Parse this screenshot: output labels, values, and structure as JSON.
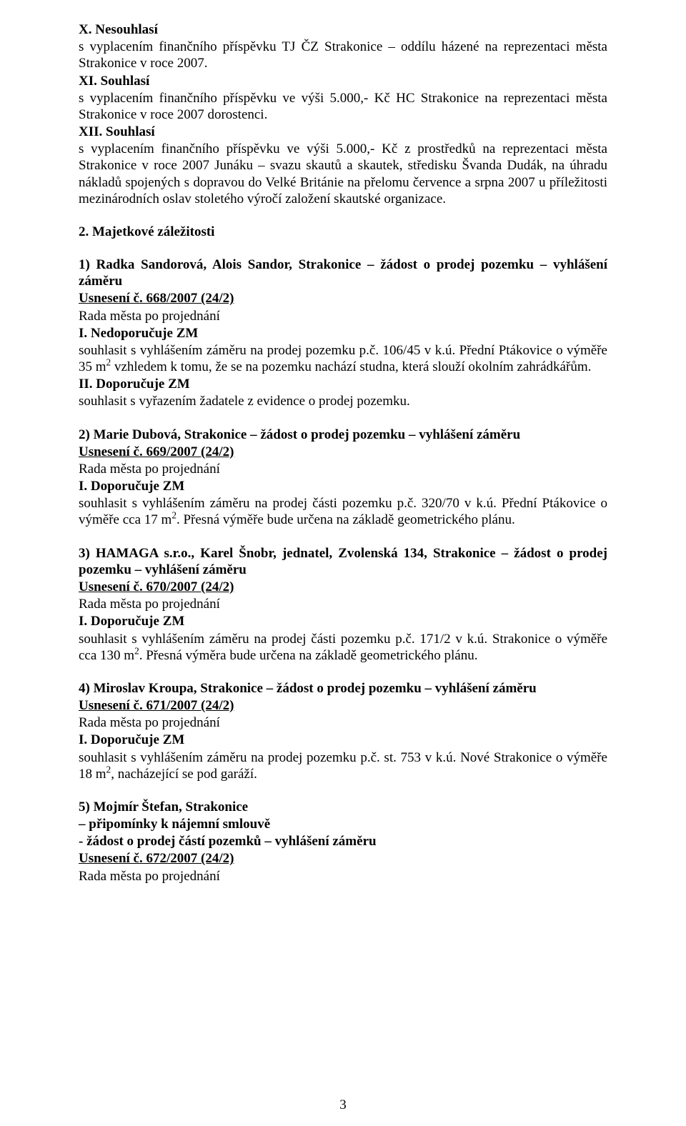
{
  "p1": "X. Nesouhlasí",
  "p2": "s vyplacením finančního příspěvku TJ ČZ Strakonice – oddílu házené na reprezentaci města Strakonice v roce 2007.",
  "p3": "XI. Souhlasí",
  "p4": "s vyplacením finančního příspěvku ve výši 5.000,- Kč HC Strakonice na reprezentaci města Strakonice v roce 2007 dorostenci.",
  "p5": "XII. Souhlasí",
  "p6": "s vyplacením finančního příspěvku ve výši 5.000,- Kč z prostředků na reprezentaci města Strakonice v roce 2007  Junáku – svazu skautů a skautek, středisku Švanda Dudák, na úhradu nákladů  spojených  s dopravou  do  Velké  Británie  na  přelomu  července  a  srpna  2007  u příležitosti mezinárodních oslav stoletého výročí založení skautské organizace.",
  "h_majetkove": "2. Majetkové záležitosti",
  "s1_title": "1) Radka Sandorová, Alois Sandor, Strakonice – žádost o prodej pozemku – vyhlášení záměru",
  "s1_usneseni": "Usnesení č. 668/2007 (24/2)",
  "rada": "Rada města po projednání",
  "s1_h1": "I. Nedoporučuje ZM",
  "s1_b1a": "souhlasit  s vyhlášením záměru  na  prodej  pozemku  p.č.  106/45  v k.ú.  Přední Ptákovice  o výměře 35 m",
  "s1_b1b": "  vzhledem k tomu, že se na pozemku nachází studna, která slouží okolním zahrádkářům.",
  "s1_h2": "II. Doporučuje ZM",
  "s1_b2": "souhlasit s vyřazením žadatele z evidence o prodej pozemku.",
  "s2_title": "2) Marie Dubová, Strakonice – žádost o prodej pozemku – vyhlášení záměru",
  "s2_usneseni": "Usnesení č. 669/2007 (24/2)",
  "s2_h1": "I. Doporučuje ZM",
  "s2_b1a": "souhlasit s vyhlášením záměru na prodej části pozemku p.č. 320/70 v k.ú. Přední Ptákovice o výměře cca 17 m",
  "s2_b1b": ". Přesná výměře bude určena na základě geometrického plánu.",
  "s3_title": "3) HAMAGA s.r.o., Karel Šnobr, jednatel, Zvolenská 134, Strakonice – žádost o prodej pozemku – vyhlášení záměru",
  "s3_usneseni": "Usnesení č. 670/2007 (24/2)",
  "s3_h1": "I. Doporučuje ZM",
  "s3_b1a": "souhlasit s vyhlášením záměru   na   prodej   části     pozemku p.č.  171/2  v k.ú.  Strakonice  o výměře cca 130 m",
  "s3_b1b": ".  Přesná výměra bude určena na základě geometrického plánu.",
  "s4_title": "4) Miroslav Kroupa, Strakonice – žádost o prodej pozemku – vyhlášení záměru",
  "s4_usneseni": "Usnesení č. 671/2007 (24/2)",
  "s4_h1": "I. Doporučuje ZM",
  "s4_b1a": "souhlasit  s vyhlášením  záměru  na  prodej  pozemku  p.č.  st.  753  v k.ú.  Nové  Strakonice  o výměře 18 m",
  "s4_b1b": ", nacházející se pod garáží.",
  "s5_title1": "5) Mojmír Štefan, Strakonice",
  "s5_title2": " – připomínky k nájemní smlouvě",
  "s5_title3": " - žádost o prodej částí  pozemků  – vyhlášení záměru",
  "s5_usneseni": "Usnesení č. 672/2007 (24/2)",
  "sup2": "2",
  "pagenum": "3"
}
